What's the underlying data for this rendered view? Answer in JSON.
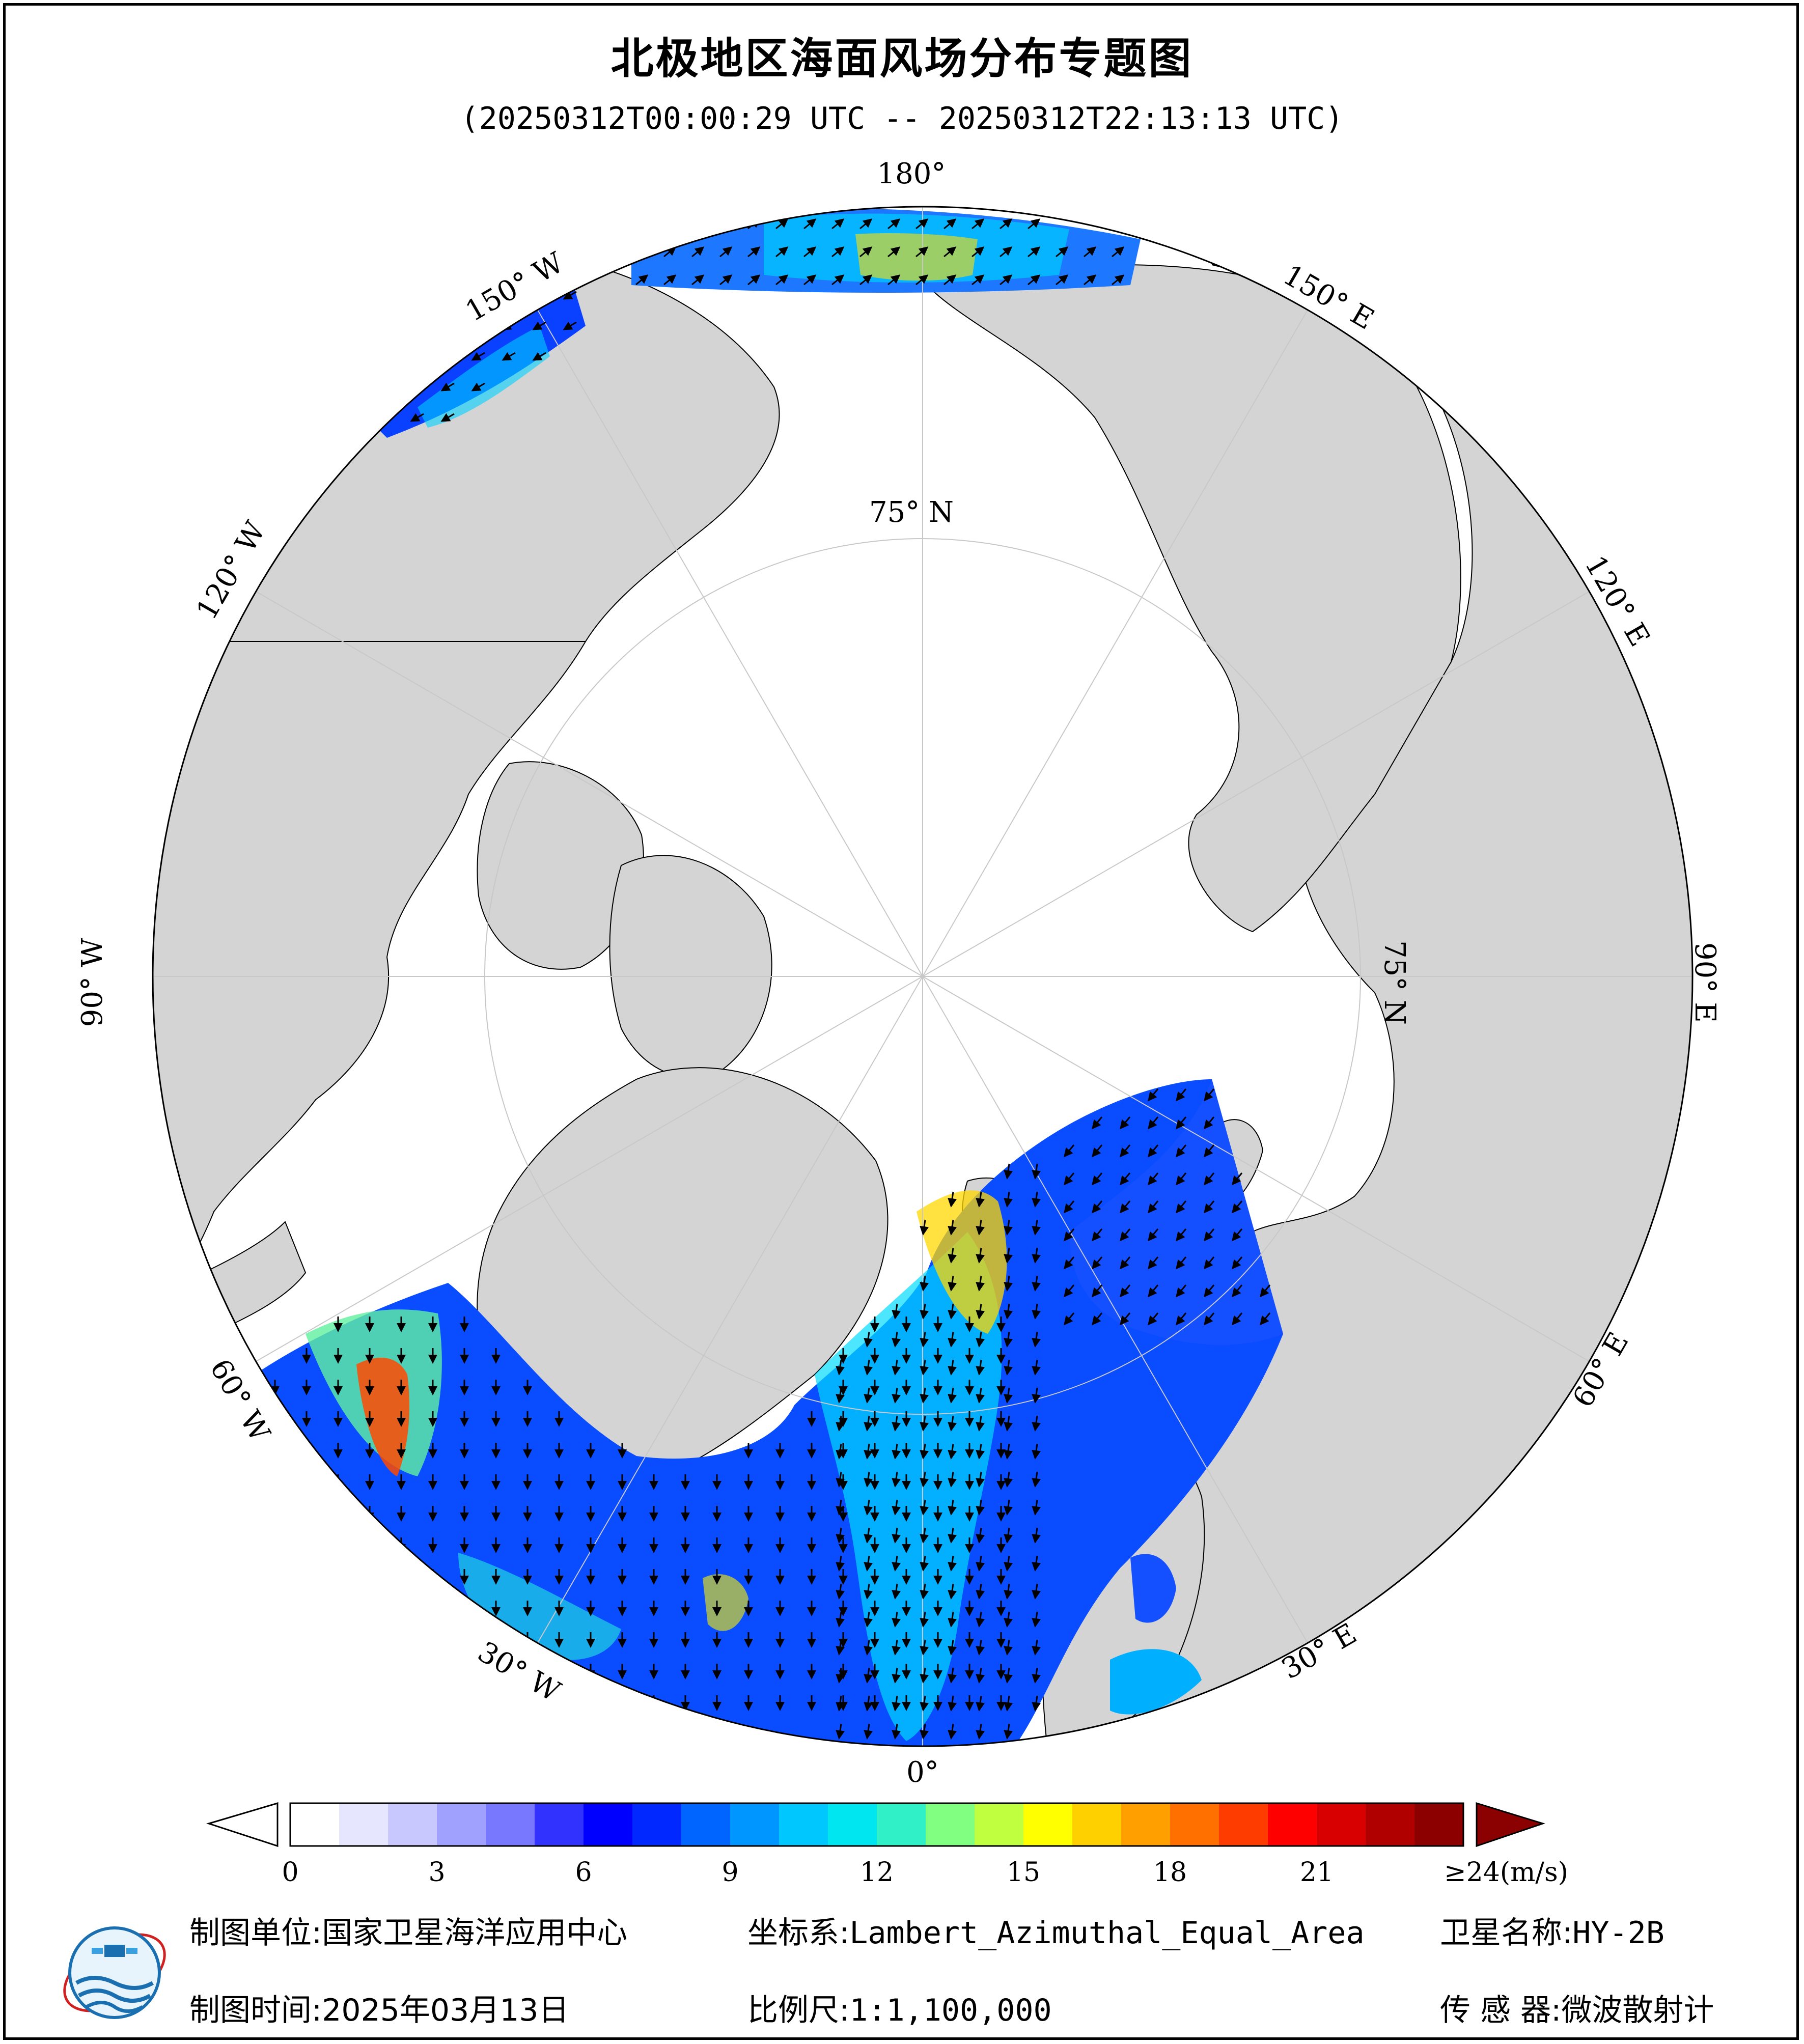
{
  "title": "北极地区海面风场分布专题图",
  "subtitle": "(20250312T00:00:29 UTC -- 20250312T22:13:13 UTC)",
  "map": {
    "projection_pole": "north",
    "latitude_ring_label": "75° N",
    "longitude_labels": {
      "lon_180": "180°",
      "lon_150w": "150° W",
      "lon_120w": "120° W",
      "lon_90w": "90° W",
      "lon_60w": "60° W",
      "lon_30w": "30° W",
      "lon_0": "0°",
      "lon_30e": "30° E",
      "lon_60e": "60° E",
      "lon_90e": "90° E",
      "lon_120e": "120° E",
      "lon_150e": "150° E"
    },
    "colors": {
      "land": "#d4d4d4",
      "ocean_ice": "#ffffff",
      "grid": "#c8c8c8",
      "arrow": "#000000"
    }
  },
  "colorbar": {
    "unit_label": "≥24(m/s)",
    "ticks": [
      "0",
      "3",
      "6",
      "9",
      "12",
      "15",
      "18",
      "21"
    ],
    "min": 0,
    "max": 24,
    "colors": [
      "#ffffff",
      "#e6e6ff",
      "#c8c8ff",
      "#a0a0ff",
      "#7878ff",
      "#3232ff",
      "#0000ff",
      "#0028ff",
      "#0064ff",
      "#0096ff",
      "#00c8ff",
      "#00e6f0",
      "#30f0c8",
      "#80ff80",
      "#c0ff40",
      "#ffff00",
      "#ffd000",
      "#ffa000",
      "#ff7000",
      "#ff3c00",
      "#ff0000",
      "#d80000",
      "#b00000",
      "#8c0000"
    ],
    "over_color": "#8b0000"
  },
  "footer": {
    "producer_label": "制图单位:",
    "producer_value": "国家卫星海洋应用中心",
    "date_label": "制图时间:",
    "date_value": "2025年03月13日",
    "crs_label": "坐标系:",
    "crs_value": "Lambert_Azimuthal_Equal_Area",
    "scale_label": "比例尺:",
    "scale_value": "1:1,100,000",
    "satellite_label": "卫星名称:",
    "satellite_value": "HY-2B",
    "sensor_label": "传 感 器:",
    "sensor_value": "微波散射计"
  }
}
